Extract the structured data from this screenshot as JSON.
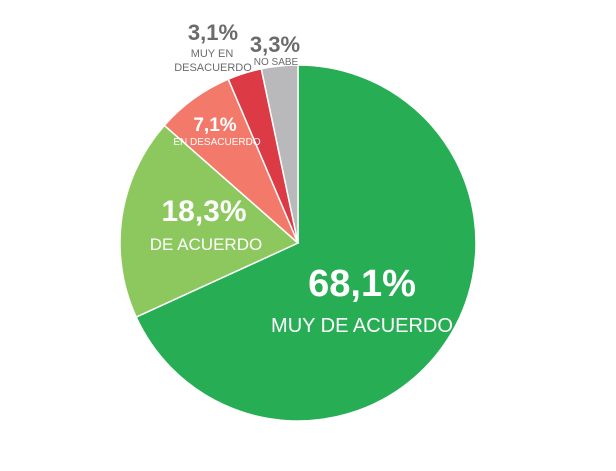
{
  "chart_data": {
    "type": "pie",
    "title": "",
    "slices": [
      {
        "label": "MUY DE ACUERDO",
        "value": 68.1,
        "display": "68,1%",
        "color": "#27ae55"
      },
      {
        "label": "DE ACUERDO",
        "value": 18.3,
        "display": "18,3%",
        "color": "#8cc85e"
      },
      {
        "label": "EN DESACUERDO",
        "value": 7.1,
        "display": "7,1%",
        "color": "#f37a6a"
      },
      {
        "label": "MUY EN DESACUERDO",
        "value": 3.1,
        "display": "3,1%",
        "color": "#dc3b45"
      },
      {
        "label": "NO SABE",
        "value": 3.3,
        "display": "3,3%",
        "color": "#b9b9bb"
      }
    ],
    "labels": {
      "muy_de_acuerdo": {
        "pct": "68,1%",
        "text": "MUY DE ACUERDO"
      },
      "de_acuerdo": {
        "pct": "18,3%",
        "text": "DE ACUERDO"
      },
      "en_desacuerdo": {
        "pct": "7,1%",
        "text": "EN DESACUERDO"
      },
      "muy_en_desacuerdo": {
        "pct": "3,1%",
        "line1": "MUY EN",
        "line2": "DESACUERDO"
      },
      "no_sabe": {
        "pct": "3,3%",
        "text": "NO SABE"
      }
    },
    "label_color_outside": "#6b6b6b",
    "label_color_inside": "#ffffff"
  }
}
